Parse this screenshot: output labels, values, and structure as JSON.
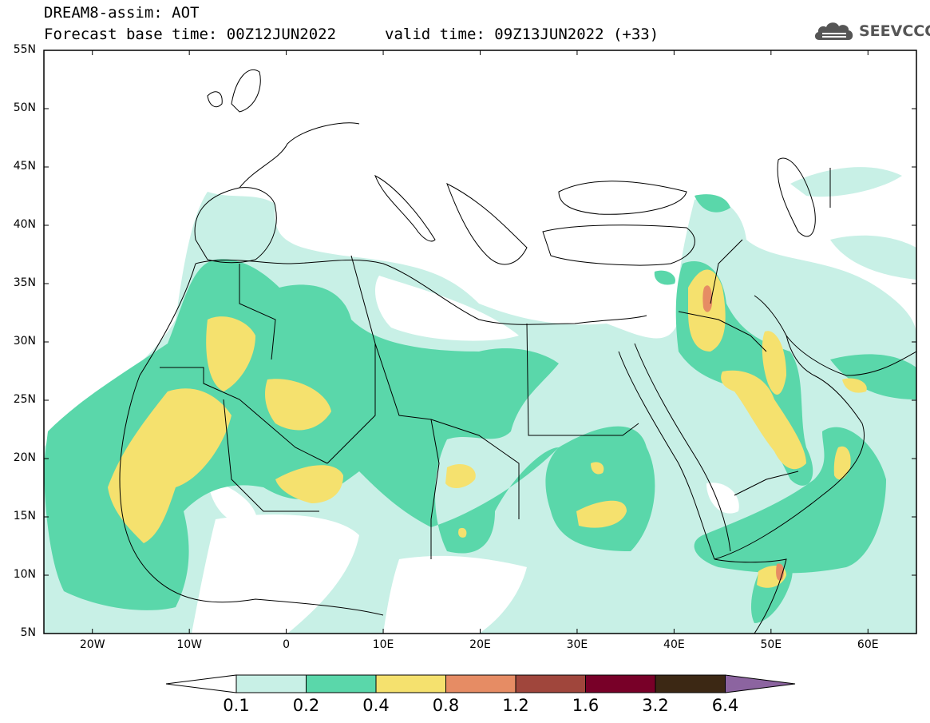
{
  "header": {
    "line1": "DREAM8-assim: AOT",
    "line2a": "Forecast base time: 00Z12JUN2022",
    "line2b": "valid time: 09Z13JUN2022 (+33)",
    "logo_text": "SEEVCCC"
  },
  "map": {
    "lat_labels": [
      "55N",
      "50N",
      "45N",
      "40N",
      "35N",
      "30N",
      "25N",
      "20N",
      "15N",
      "10N",
      "5N"
    ],
    "lon_labels": [
      "20W",
      "10W",
      "0",
      "10E",
      "20E",
      "30E",
      "40E",
      "50E",
      "60E"
    ],
    "lat_range": [
      5,
      55
    ],
    "lon_range": [
      -25,
      65
    ],
    "field": "AOT"
  },
  "colorbar": {
    "labels": [
      "0.1",
      "0.2",
      "0.4",
      "0.8",
      "1.2",
      "1.6",
      "3.2",
      "6.4"
    ],
    "colors": [
      "#ffffff",
      "#c8f0e6",
      "#5ad7aa",
      "#f5e16e",
      "#e68c64",
      "#a0463c",
      "#780028",
      "#3c2814",
      "#8c64a0"
    ]
  }
}
